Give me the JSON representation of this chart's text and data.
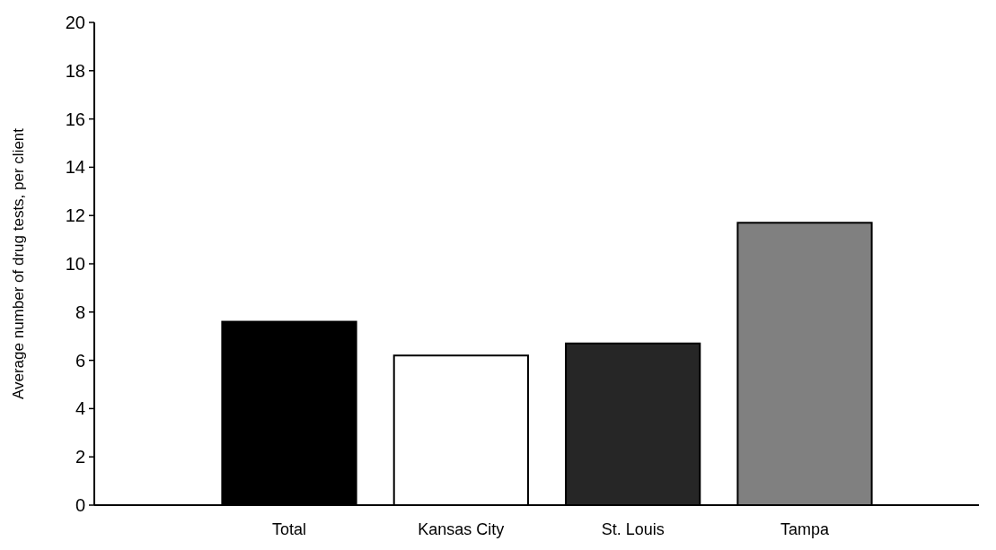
{
  "chart_data": {
    "type": "bar",
    "ylabel": "Average number of drug tests, per client",
    "categories": [
      "Total",
      "Kansas City",
      "St. Louis",
      "Tampa"
    ],
    "values": [
      7.6,
      6.2,
      6.7,
      11.7
    ],
    "colors": [
      "#000000",
      "#ffffff",
      "#262626",
      "#808080"
    ],
    "ylim": [
      0,
      20
    ],
    "yticks": [
      0,
      2,
      4,
      6,
      8,
      10,
      12,
      14,
      16,
      18,
      20
    ],
    "grid": false
  }
}
